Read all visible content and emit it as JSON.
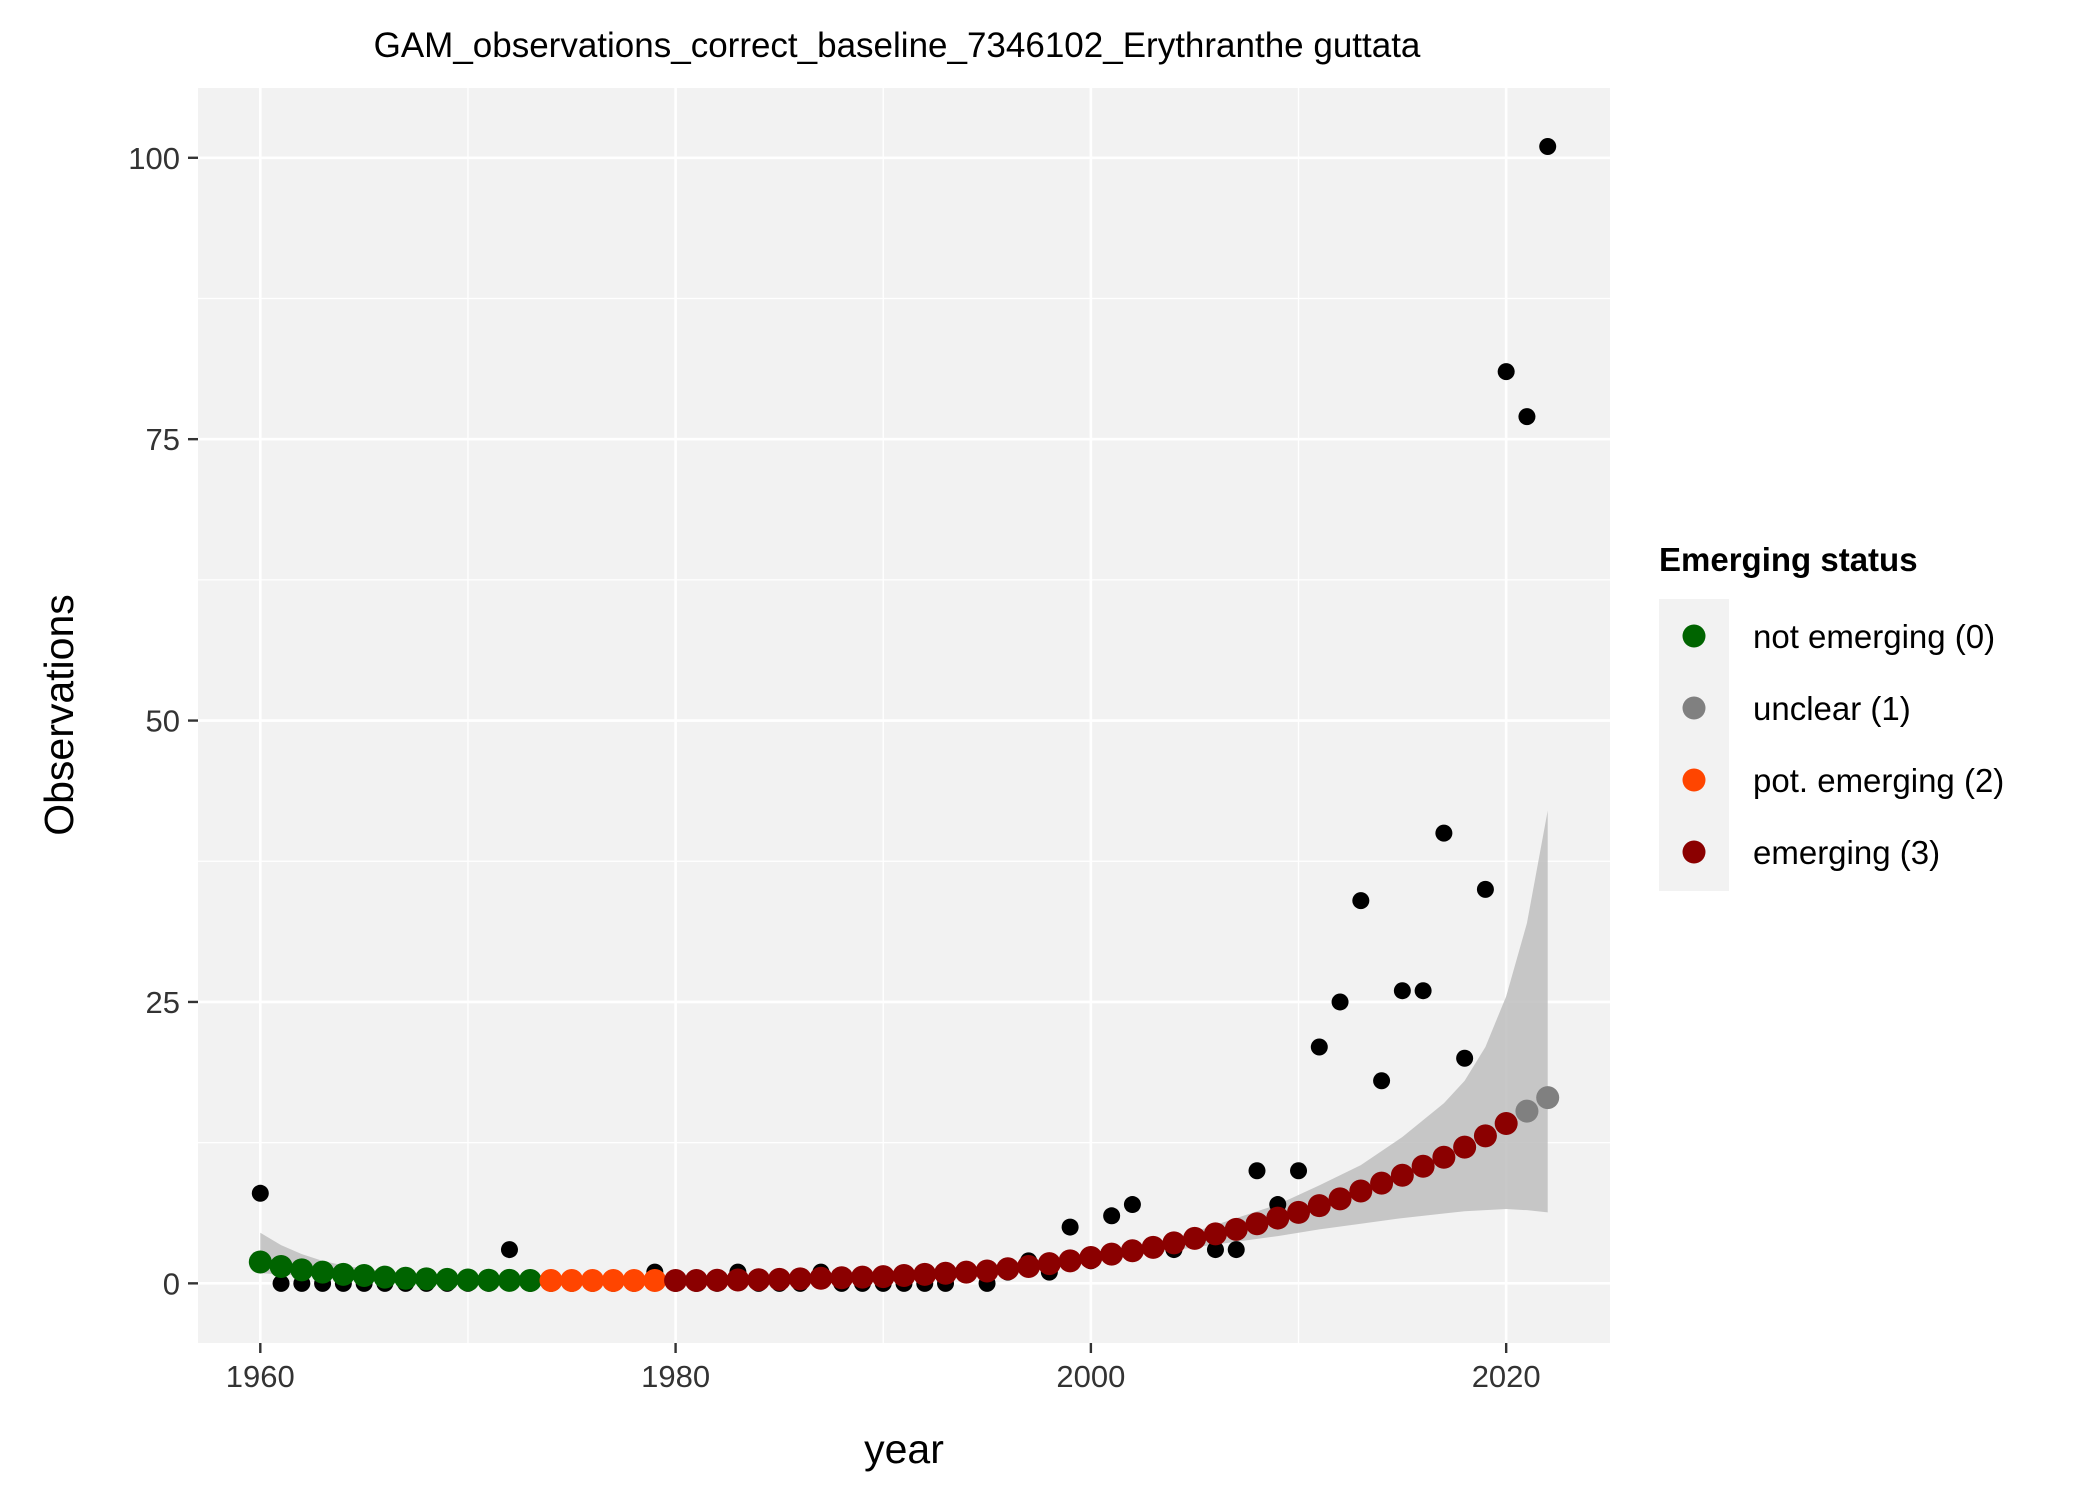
{
  "chart_data": {
    "type": "scatter",
    "title": "GAM_observations_correct_baseline_7346102_Erythranthe guttata",
    "xlabel": "year",
    "ylabel": "Observations",
    "xlim": [
      1957,
      2025
    ],
    "ylim": [
      -5.3,
      106.2
    ],
    "x_ticks": [
      1960,
      1980,
      2000,
      2020
    ],
    "y_ticks": [
      0,
      25,
      50,
      75,
      100
    ],
    "x_tick_labels": [
      "1960",
      "1980",
      "2000",
      "2020"
    ],
    "y_tick_labels": [
      "0",
      "25",
      "50",
      "75",
      "100"
    ],
    "grid": true,
    "legend": {
      "title": "Emerging status",
      "position": "right",
      "entries": [
        {
          "label": "not emerging (0)",
          "color": "#006400"
        },
        {
          "label": "unclear (1)",
          "color": "#808080"
        },
        {
          "label": "pot. emerging (2)",
          "color": "#FF4500"
        },
        {
          "label": "emerging (3)",
          "color": "#8B0000"
        }
      ]
    },
    "observed": {
      "color": "#000000",
      "x": [
        1960,
        1961,
        1962,
        1963,
        1964,
        1965,
        1966,
        1967,
        1968,
        1969,
        1970,
        1971,
        1972,
        1973,
        1974,
        1975,
        1976,
        1977,
        1978,
        1979,
        1980,
        1981,
        1982,
        1983,
        1984,
        1985,
        1986,
        1987,
        1988,
        1989,
        1990,
        1991,
        1992,
        1993,
        1994,
        1995,
        1996,
        1997,
        1998,
        1999,
        2000,
        2001,
        2002,
        2003,
        2004,
        2005,
        2006,
        2007,
        2008,
        2009,
        2010,
        2011,
        2012,
        2013,
        2014,
        2015,
        2016,
        2017,
        2018,
        2019,
        2020,
        2021,
        2022
      ],
      "y": [
        8,
        0,
        0,
        0,
        0,
        0,
        0,
        0,
        0,
        0,
        0,
        0,
        3,
        0,
        0,
        0,
        0,
        0,
        0,
        1,
        0,
        0,
        0,
        1,
        0,
        0,
        0,
        1,
        0,
        0,
        0,
        0,
        0,
        0,
        1,
        0,
        1,
        2,
        1,
        5,
        2,
        6,
        7,
        3,
        3,
        4,
        3,
        3,
        10,
        7,
        10,
        21,
        25,
        34,
        18,
        26,
        26,
        40,
        20,
        35,
        81,
        77,
        101
      ]
    },
    "fitted": {
      "x": [
        1960,
        1961,
        1962,
        1963,
        1964,
        1965,
        1966,
        1967,
        1968,
        1969,
        1970,
        1971,
        1972,
        1973,
        1974,
        1975,
        1976,
        1977,
        1978,
        1979,
        1980,
        1981,
        1982,
        1983,
        1984,
        1985,
        1986,
        1987,
        1988,
        1989,
        1990,
        1991,
        1992,
        1993,
        1994,
        1995,
        1996,
        1997,
        1998,
        1999,
        2000,
        2001,
        2002,
        2003,
        2004,
        2005,
        2006,
        2007,
        2008,
        2009,
        2010,
        2011,
        2012,
        2013,
        2014,
        2015,
        2016,
        2017,
        2018,
        2019,
        2020,
        2021,
        2022
      ],
      "y": [
        1.9,
        1.5,
        1.2,
        1.0,
        0.8,
        0.7,
        0.55,
        0.45,
        0.4,
        0.35,
        0.3,
        0.28,
        0.26,
        0.25,
        0.25,
        0.25,
        0.25,
        0.25,
        0.25,
        0.25,
        0.25,
        0.25,
        0.27,
        0.3,
        0.32,
        0.35,
        0.4,
        0.45,
        0.5,
        0.55,
        0.6,
        0.7,
        0.8,
        0.9,
        1.0,
        1.1,
        1.3,
        1.5,
        1.75,
        2.0,
        2.3,
        2.6,
        2.9,
        3.2,
        3.6,
        4.0,
        4.4,
        4.8,
        5.3,
        5.8,
        6.3,
        6.9,
        7.5,
        8.2,
        8.9,
        9.6,
        10.4,
        11.2,
        12.1,
        13.1,
        14.2,
        15.3,
        16.5
      ],
      "status": [
        0,
        0,
        0,
        0,
        0,
        0,
        0,
        0,
        0,
        0,
        0,
        0,
        0,
        0,
        2,
        2,
        2,
        2,
        2,
        2,
        3,
        3,
        3,
        3,
        3,
        3,
        3,
        3,
        3,
        3,
        3,
        3,
        3,
        3,
        3,
        3,
        3,
        3,
        3,
        3,
        3,
        3,
        3,
        3,
        3,
        3,
        3,
        3,
        3,
        3,
        3,
        3,
        3,
        3,
        3,
        3,
        3,
        3,
        3,
        3,
        3,
        1,
        1
      ]
    },
    "confidence_band": {
      "color": "#BEBEBE",
      "x": [
        1960,
        1961,
        1962,
        1963,
        1964,
        1965,
        1966,
        1968,
        1970,
        1972,
        1975,
        1980,
        1985,
        1990,
        1995,
        2000,
        2003,
        2005,
        2007,
        2009,
        2011,
        2013,
        2015,
        2017,
        2018,
        2019,
        2020,
        2021,
        2022
      ],
      "lower": [
        0.9,
        0.8,
        0.7,
        0.55,
        0.45,
        0.35,
        0.3,
        0.22,
        0.18,
        0.15,
        0.12,
        0.12,
        0.15,
        0.4,
        0.8,
        1.8,
        2.7,
        3.2,
        3.7,
        4.2,
        4.8,
        5.3,
        5.8,
        6.2,
        6.4,
        6.5,
        6.6,
        6.5,
        6.3
      ],
      "upper": [
        4.5,
        3.4,
        2.6,
        2.0,
        1.6,
        1.3,
        1.1,
        0.8,
        0.6,
        0.5,
        0.42,
        0.4,
        0.5,
        0.8,
        1.3,
        2.7,
        3.6,
        4.6,
        5.8,
        7.0,
        8.7,
        10.5,
        13.0,
        16.0,
        18.0,
        21.0,
        25.5,
        32.0,
        42.0
      ]
    }
  }
}
